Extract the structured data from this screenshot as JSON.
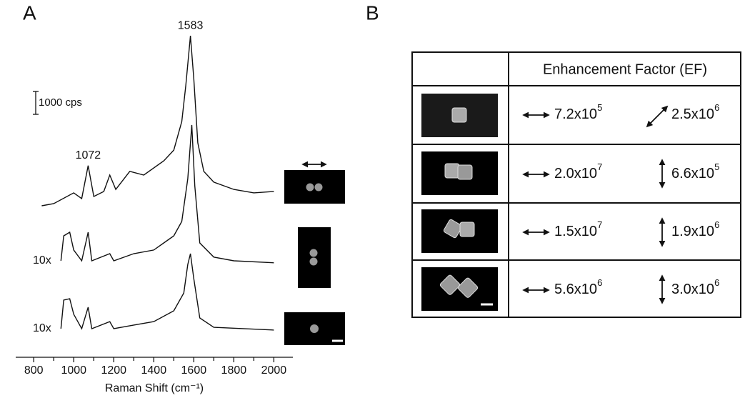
{
  "panel_a": {
    "label": "A"
  },
  "panel_b": {
    "label": "B"
  },
  "chart_data": {
    "type": "line",
    "x_label": "Raman Shift (cm⁻¹)",
    "xlim": [
      710,
      2095
    ],
    "xticks": [
      800,
      1000,
      1200,
      1400,
      1600,
      1800,
      2000
    ],
    "xminorticks": [
      900,
      1100,
      1300,
      1500,
      1700,
      1900
    ],
    "ylim": [
      0,
      15000
    ],
    "color": "#111111",
    "scale_bar": {
      "value": 1000,
      "label": "1000 cps"
    },
    "peak_labels": [
      1583,
      1072
    ],
    "series": [
      {
        "x": [
          840,
          900,
          1000,
          1040,
          1072,
          1100,
          1150,
          1180,
          1210,
          1280,
          1350,
          1450,
          1500,
          1540,
          1560,
          1583,
          1600,
          1620,
          1650,
          1700,
          1800,
          1900,
          2000
        ],
        "values": [
          6625,
          6720,
          7190,
          6940,
          8380,
          7030,
          7250,
          7970,
          7340,
          8130,
          7970,
          8590,
          9060,
          10310,
          11880,
          14060,
          12190,
          9380,
          8130,
          7660,
          7340,
          7190,
          7250
        ]
      },
      {
        "note": "10x",
        "x": [
          936,
          950,
          980,
          1000,
          1040,
          1072,
          1090,
          1180,
          1200,
          1300,
          1400,
          1450,
          1500,
          1540,
          1570,
          1590,
          1605,
          1630,
          1700,
          1800,
          2000
        ],
        "values": [
          4220,
          5310,
          5470,
          4690,
          4220,
          5470,
          4220,
          4530,
          4220,
          4530,
          4690,
          5000,
          5310,
          5940,
          7810,
          10160,
          7500,
          5000,
          4380,
          4220,
          4130
        ]
      },
      {
        "note": "10x",
        "x": [
          936,
          950,
          980,
          1000,
          1040,
          1072,
          1090,
          1180,
          1200,
          1300,
          1400,
          1500,
          1550,
          1570,
          1583,
          1600,
          1630,
          1700,
          2000
        ],
        "values": [
          1250,
          2500,
          2560,
          1880,
          1250,
          2190,
          1250,
          1560,
          1250,
          1410,
          1560,
          2030,
          2810,
          4060,
          4530,
          3440,
          1720,
          1310,
          1190
        ]
      }
    ]
  },
  "table": {
    "header": "Enhancement Factor (EF)",
    "rows": [
      [
        {
          "base": "7.2x10",
          "exp": "5"
        },
        {
          "base": "2.5x10",
          "exp": "6"
        }
      ],
      [
        {
          "base": "2.0x10",
          "exp": "7"
        },
        {
          "base": "6.6x10",
          "exp": "5"
        }
      ],
      [
        {
          "base": "1.5x10",
          "exp": "7"
        },
        {
          "base": "1.9x10",
          "exp": "6"
        }
      ],
      [
        {
          "base": "5.6x10",
          "exp": "6"
        },
        {
          "base": "3.0x10",
          "exp": "6"
        }
      ]
    ]
  }
}
